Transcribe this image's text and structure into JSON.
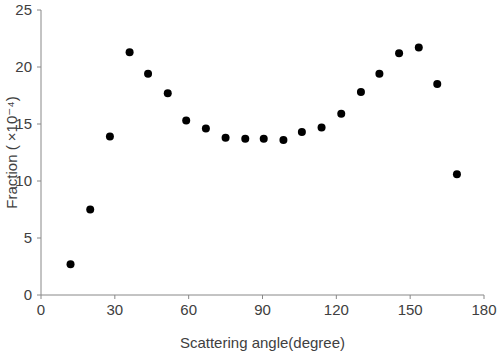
{
  "chart_data": {
    "type": "scatter",
    "x_label": "Scattering angle(degree)",
    "y_label": "Fraction ( ×10⁻⁴)",
    "x": [
      12,
      20,
      28,
      36,
      43.5,
      51.5,
      59,
      67,
      75,
      83,
      90.5,
      98.5,
      106,
      114,
      122,
      130,
      137.5,
      145.5,
      153.5,
      161,
      169
    ],
    "values": [
      2.7,
      7.5,
      13.9,
      21.3,
      19.4,
      17.7,
      15.3,
      14.6,
      13.8,
      13.7,
      13.7,
      13.6,
      14.3,
      14.7,
      15.9,
      17.8,
      19.4,
      21.2,
      21.7,
      18.5,
      10.6
    ],
    "color": "#000000",
    "marker": "circle",
    "xlim": [
      0,
      180
    ],
    "xticks": [
      0,
      30,
      60,
      90,
      120,
      150,
      180
    ],
    "ylim": [
      0,
      25
    ],
    "yticks": [
      0,
      5,
      10,
      15,
      20,
      25
    ],
    "grid": false
  }
}
